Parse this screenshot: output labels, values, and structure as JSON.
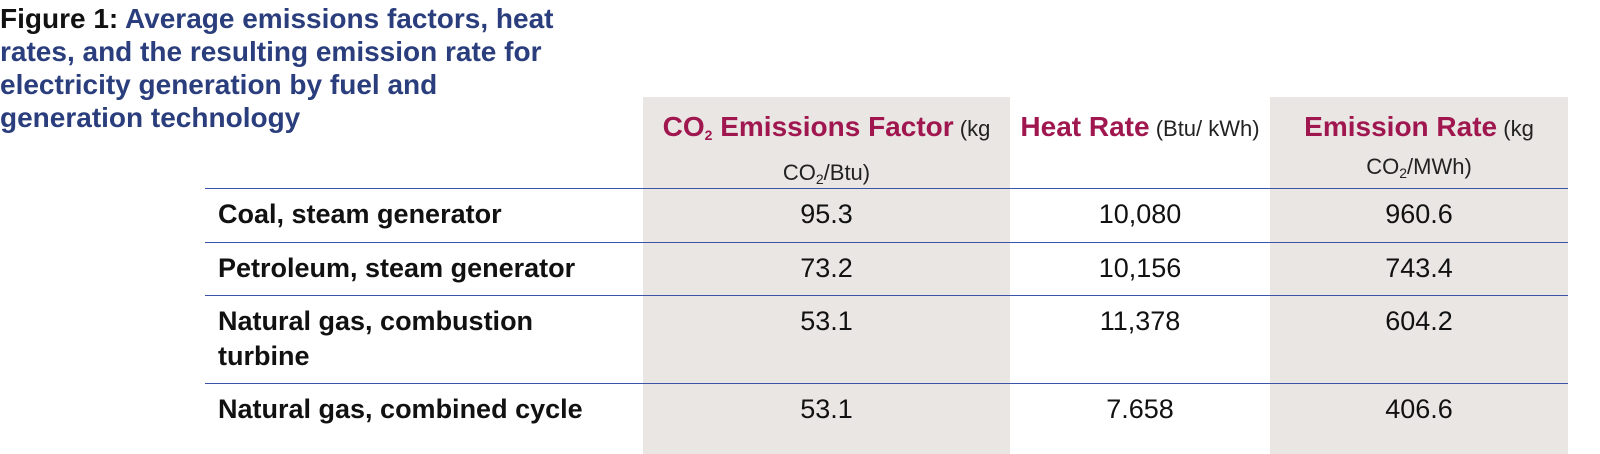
{
  "figure_label": "Figure 1:",
  "title": "Average emissions factors, heat rates, and the resulting emission rate for electricity generation by fuel and generation technology",
  "table": {
    "columns": [
      {
        "title": [
          "CO",
          "2",
          " Emissions Factor"
        ],
        "unit": [
          " (kg CO",
          "2",
          "/Btu)"
        ]
      },
      {
        "title": [
          "Heat Rate"
        ],
        "unit": [
          " (Btu/ kWh)"
        ]
      },
      {
        "title": [
          "Emission Rate"
        ],
        "unit": [
          " (kg CO",
          "2",
          "/MWh)"
        ]
      }
    ],
    "rows": [
      [
        "Coal, steam generator",
        "95.3",
        "10,080",
        "960.6"
      ],
      [
        "Petroleum, steam generator",
        "73.2",
        "10,156",
        "743.4"
      ],
      [
        "Natural gas, combustion turbine",
        "53.1",
        "11,378",
        "604.2"
      ],
      [
        "Natural gas, combined cycle",
        "53.1",
        "7.658",
        "406.6"
      ]
    ]
  }
}
